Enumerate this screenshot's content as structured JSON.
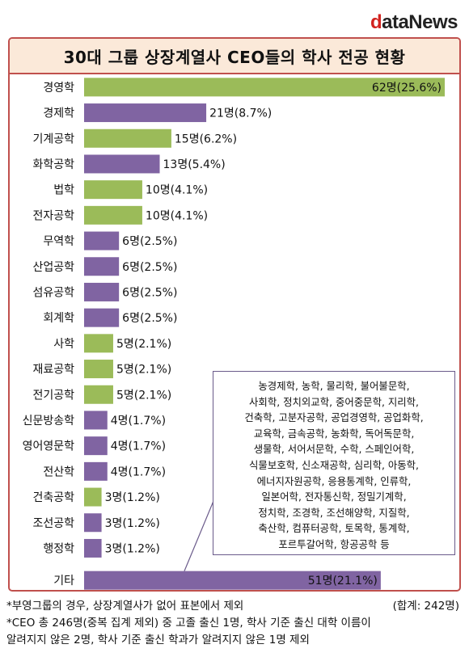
{
  "logo": {
    "first": "d",
    "rest": "ataNews"
  },
  "title": "30대 그룹 상장계열사 CEO들의 학사 전공 현황",
  "colors": {
    "green": "#9bbb59",
    "purple": "#8064a2",
    "frame": "#c0504d",
    "title_bg": "#fbe9d9"
  },
  "chart_data": {
    "type": "bar",
    "orientation": "horizontal",
    "title": "30대 그룹 상장계열사 CEO들의 학사 전공 현황",
    "categories": [
      "경영학",
      "경제학",
      "기계공학",
      "화학공학",
      "법학",
      "전자공학",
      "무역학",
      "산업공학",
      "섬유공학",
      "회계학",
      "사학",
      "재료공학",
      "전기공학",
      "신문방송학",
      "영어영문학",
      "전산학",
      "건축공학",
      "조선공학",
      "행정학",
      "기타"
    ],
    "values": [
      62,
      21,
      15,
      13,
      10,
      10,
      6,
      6,
      6,
      6,
      5,
      5,
      5,
      4,
      4,
      4,
      3,
      3,
      3,
      51
    ],
    "data_labels": [
      "62명(25.6%)",
      "21명(8.7%)",
      "15명(6.2%)",
      "13명(5.4%)",
      "10명(4.1%)",
      "10명(4.1%)",
      "6명(2.5%)",
      "6명(2.5%)",
      "6명(2.5%)",
      "6명(2.5%)",
      "5명(2.1%)",
      "5명(2.1%)",
      "5명(2.1%)",
      "4명(1.7%)",
      "4명(1.7%)",
      "4명(1.7%)",
      "3명(1.2%)",
      "3명(1.2%)",
      "3명(1.2%)",
      "51명(21.1%)"
    ],
    "bar_colors": [
      "#9bbb59",
      "#8064a2",
      "#9bbb59",
      "#8064a2",
      "#9bbb59",
      "#9bbb59",
      "#8064a2",
      "#8064a2",
      "#8064a2",
      "#8064a2",
      "#9bbb59",
      "#9bbb59",
      "#9bbb59",
      "#8064a2",
      "#8064a2",
      "#8064a2",
      "#9bbb59",
      "#8064a2",
      "#8064a2",
      "#8064a2"
    ],
    "xlim": [
      0,
      62
    ],
    "grid": false,
    "legend": "none"
  },
  "callout": {
    "lines": [
      "농경제학, 농학, 물리학, 불어불문학,",
      "사회학, 정치외교학, 중어중문학, 지리학,",
      "건축학, 고분자공학, 공업경영학, 공업화학,",
      "교육학, 금속공학, 농화학, 독어독문학,",
      "생물학, 서어서문학, 수학, 스페인어학,",
      "식물보호학, 신소재공학, 심리학, 아동학,",
      "에너지자원공학, 응용통계학, 인류학,",
      "일본어학, 전자통신학, 정밀기계학,",
      "정치학, 조경학, 조선해양학, 지질학,",
      "축산학, 컴퓨터공학, 토목학, 통계학,",
      "포르투갈어학, 항공공학 등"
    ]
  },
  "notes": {
    "line1": "*부영그룹의 경우, 상장계열사가 없어 표본에서 제외",
    "total": "(합계: 242명)",
    "line2": "*CEO 총 246명(중복 집계 제외) 중 고졸 출신 1명, 학사 기준 출신 대학 이름이",
    "line3": "알려지지 않은 2명, 학사 기준 출신 학과가 알려지지 않은 1명 제외"
  }
}
